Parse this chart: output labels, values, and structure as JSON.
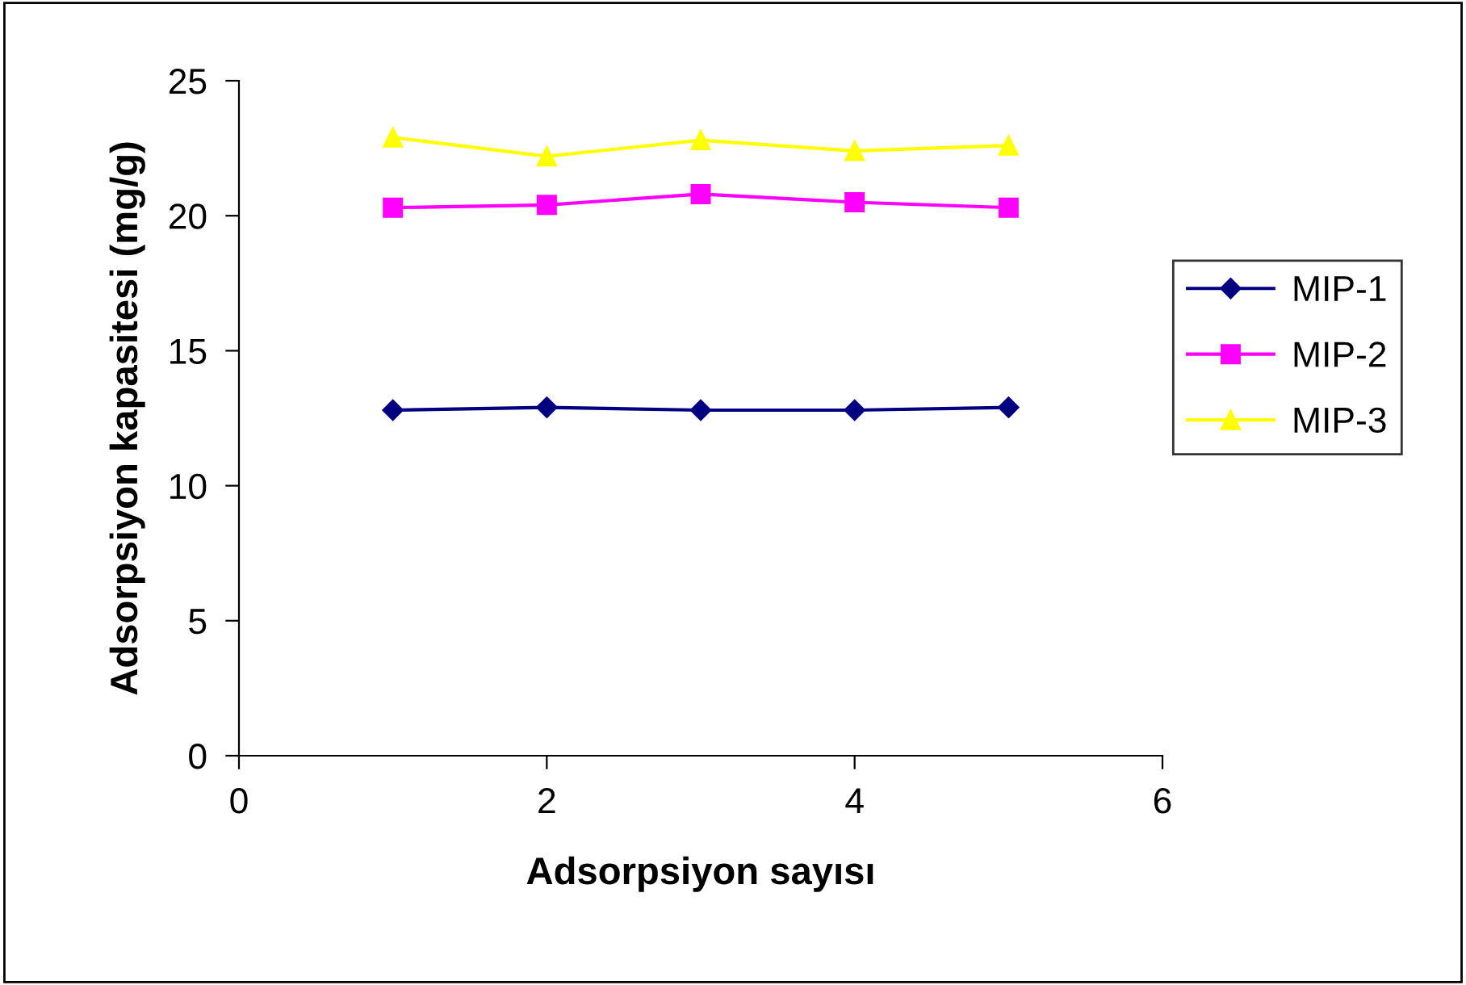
{
  "chart_data": {
    "type": "line",
    "xlabel": "Adsorpsiyon sayısı",
    "ylabel": "Adsorpsiyon kapasitesi (mg/g)",
    "x": [
      1,
      2,
      3,
      4,
      5
    ],
    "series": [
      {
        "name": "MIP-1",
        "color": "#000080",
        "marker": "diamond",
        "values": [
          12.8,
          12.9,
          12.8,
          12.8,
          12.9
        ]
      },
      {
        "name": "MIP-2",
        "color": "#ff00ff",
        "marker": "square",
        "values": [
          20.3,
          20.4,
          20.8,
          20.5,
          20.3
        ]
      },
      {
        "name": "MIP-3",
        "color": "#ffff00",
        "marker": "triangle",
        "values": [
          22.9,
          22.2,
          22.8,
          22.4,
          22.6
        ]
      }
    ],
    "xlim": [
      0,
      6
    ],
    "xticks": [
      0,
      2,
      4,
      6
    ],
    "ylim": [
      0,
      25
    ],
    "yticks": [
      0,
      5,
      10,
      15,
      20,
      25
    ],
    "grid": false,
    "legend": "right"
  }
}
